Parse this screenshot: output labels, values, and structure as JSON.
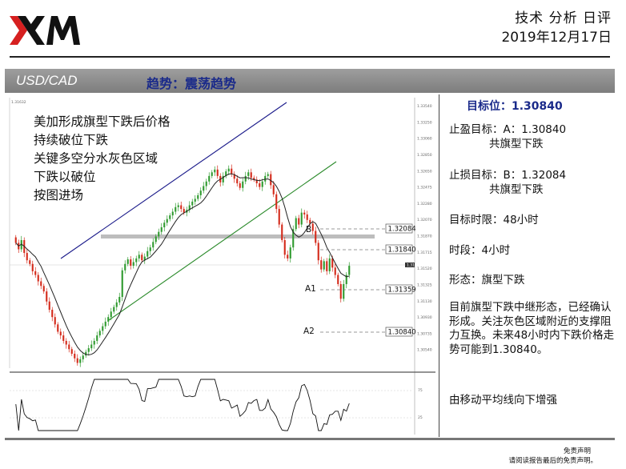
{
  "header": {
    "report_title": "技术 分析 日评",
    "date": "2019年12月17日"
  },
  "section": {
    "symbol": "USD/CAD",
    "trend": "趋势：震荡趋势"
  },
  "panel": {
    "target_heading": "目标位：1.30840",
    "take_profit_label": "止盈目标：A：1.30840",
    "take_profit_note": "共旗型下跌",
    "stop_loss_label": "止损目标：B：1.32084",
    "stop_loss_note": "共旗型下跌",
    "horizon": "目标时限：48小时",
    "timeframe": "时段：4小时",
    "pattern": "形态：旗型下跌",
    "description": "目前旗型下跌中继形态，已经确认形成。关注灰色区域附近的支撑阻力互换。未来48小时内下跌价格走势可能到1.30840。",
    "ma_note": "由移动平均线向下增强"
  },
  "footer": {
    "disclaimer_title": "免责声明",
    "disclaimer_text": "请阅读报告最后的免责声明。"
  },
  "colors": {
    "bull": "#2e9a2e",
    "bear": "#d42a1a",
    "ma": "#222222",
    "upper_channel": "#1a1a8a",
    "lower_channel": "#2a8a2a",
    "zone": "#bdbdbd",
    "title_blue": "#1a2a8a"
  },
  "chart_data": {
    "type": "candlestick",
    "timeframe": "4H",
    "symbol": "USD/CAD",
    "annotations": [
      "美加形成旗型下跌后价格",
      "持续破位下跌",
      "关键多空分水灰色区域",
      "下跌以破位",
      "按图进场"
    ],
    "price_levels": [
      {
        "label": "B",
        "value": 1.32084,
        "text": "1.32084"
      },
      {
        "label": "",
        "value": 1.3184,
        "text": "1.31840"
      },
      {
        "label": "A1",
        "value": 1.31359,
        "text": "1.31359"
      },
      {
        "label": "A2",
        "value": 1.3084,
        "text": "1.30840"
      }
    ],
    "ylim": [
      1.306,
      1.335
    ],
    "y_ticks": [
      "1.33540",
      "1.33250",
      "1.33060",
      "1.32850",
      "1.32650",
      "1.32475",
      "1.32280",
      "1.32070",
      "1.31870",
      "1.31715",
      "1.31520",
      "1.31325",
      "1.31130",
      "1.30930",
      "1.30735",
      "1.30540"
    ],
    "current_price_tag": "1.31625",
    "top_left_price": "1.31632",
    "oscillator_ticks": [
      "75",
      "25"
    ],
    "close": [
      1.3195,
      1.3188,
      1.3198,
      1.3184,
      1.3176,
      1.3172,
      1.3164,
      1.316,
      1.3153,
      1.3148,
      1.3142,
      1.3131,
      1.3122,
      1.3114,
      1.3106,
      1.3098,
      1.3094,
      1.3088,
      1.3084,
      1.3079,
      1.3074,
      1.3069,
      1.3064,
      1.3068,
      1.3072,
      1.3076,
      1.308,
      1.3084,
      1.3088,
      1.3094,
      1.3099,
      1.3104,
      1.3109,
      1.3114,
      1.312,
      1.3125,
      1.313,
      1.3136,
      1.3165,
      1.3172,
      1.3177,
      1.317,
      1.3174,
      1.3178,
      1.3182,
      1.3176,
      1.318,
      1.3186,
      1.319,
      1.3196,
      1.3202,
      1.3207,
      1.3212,
      1.3217,
      1.3221,
      1.3225,
      1.3229,
      1.3234,
      1.3236,
      1.3232,
      1.3228,
      1.3231,
      1.3236,
      1.324,
      1.3243,
      1.3247,
      1.3252,
      1.3257,
      1.3262,
      1.3268,
      1.3272,
      1.3275,
      1.3268,
      1.3261,
      1.3268,
      1.3273,
      1.3276,
      1.327,
      1.3265,
      1.326,
      1.3255,
      1.3262,
      1.3268,
      1.3272,
      1.3266,
      1.3264,
      1.326,
      1.3256,
      1.3262,
      1.3268,
      1.327,
      1.3258,
      1.3248,
      1.3232,
      1.3215,
      1.3198,
      1.3182,
      1.3178,
      1.319,
      1.321,
      1.3222,
      1.3215,
      1.3228,
      1.3226,
      1.322,
      1.3216,
      1.3208,
      1.3195,
      1.3176,
      1.3166,
      1.3175,
      1.3164,
      1.3178,
      1.3168,
      1.316,
      1.315,
      1.3134,
      1.315,
      1.316,
      1.317
    ]
  }
}
